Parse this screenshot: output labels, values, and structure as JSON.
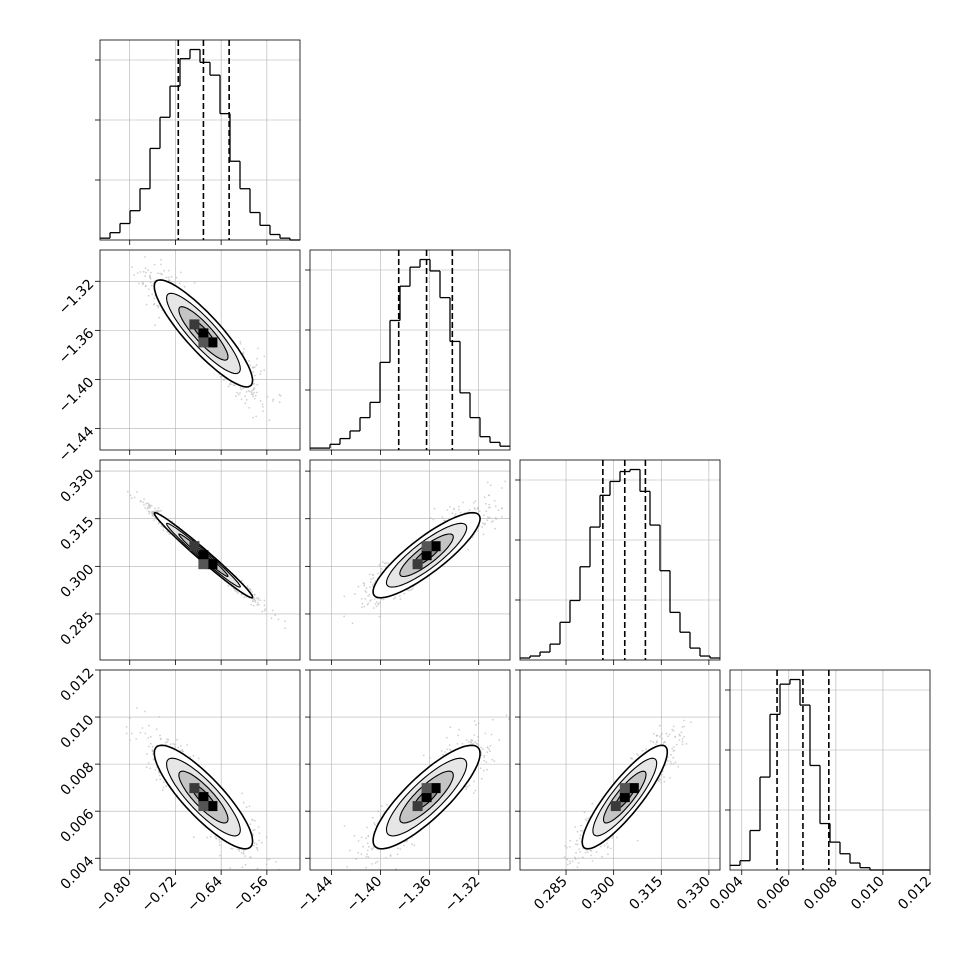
{
  "chart_data": {
    "type": "corner",
    "parameters": [
      {
        "id": "p0",
        "ticks": [
          -0.8,
          -0.72,
          -0.64,
          -0.56
        ],
        "tick_labels": [
          "−0.80",
          "−0.72",
          "−0.64",
          "−0.56"
        ],
        "range": [
          -0.852,
          -0.502
        ],
        "quantiles": [
          -0.715,
          -0.671,
          -0.626
        ],
        "median": -0.671,
        "sigma": 0.043,
        "histogram": [
          1,
          4,
          9,
          16,
          28,
          50,
          67,
          84,
          99,
          104,
          97,
          90,
          69,
          43,
          28,
          15,
          8,
          3,
          1,
          0
        ]
      },
      {
        "id": "p1",
        "ticks": [
          -1.44,
          -1.4,
          -1.36,
          -1.32
        ],
        "tick_labels": [
          "−1.44",
          "−1.40",
          "−1.36",
          "−1.32"
        ],
        "range": [
          -1.4575,
          -1.2945
        ],
        "quantiles": [
          -1.3852,
          -1.3625,
          -1.3415
        ],
        "median": -1.3625,
        "sigma": 0.0218,
        "histogram": [
          1,
          1,
          3,
          6,
          10,
          17,
          25,
          46,
          68,
          86,
          96,
          100,
          94,
          80,
          57,
          30,
          17,
          7,
          4,
          2
        ]
      },
      {
        "id": "p2",
        "ticks": [
          0.285,
          0.3,
          0.315,
          0.33
        ],
        "tick_labels": [
          "0.285",
          "0.300",
          "0.315",
          "0.330"
        ],
        "range": [
          0.2705,
          0.3335
        ],
        "quantiles": [
          0.2966,
          0.3035,
          0.31
        ],
        "median": 0.3035,
        "sigma": 0.0067,
        "histogram": [
          1,
          2,
          4,
          8,
          19,
          30,
          47,
          67,
          83,
          90,
          95,
          96,
          85,
          68,
          45,
          24,
          14,
          6,
          2,
          1
        ]
      },
      {
        "id": "p3",
        "ticks": [
          0.004,
          0.006,
          0.008,
          0.01,
          0.012
        ],
        "tick_labels": [
          "0.004",
          "0.006",
          "0.008",
          "0.010",
          "0.012"
        ],
        "range": [
          0.0035,
          0.012
        ],
        "quantiles": [
          0.0055,
          0.0066,
          0.0077
        ],
        "median": 0.0066,
        "sigma": 0.0011,
        "histogram": [
          2,
          4,
          17,
          40,
          67,
          80,
          82,
          71,
          45,
          20,
          12,
          7,
          3,
          1,
          0,
          0,
          0,
          0,
          0,
          0
        ]
      }
    ],
    "correlations": [
      {
        "x": 0,
        "y": 1,
        "r": -0.88
      },
      {
        "x": 0,
        "y": 2,
        "r": -0.985
      },
      {
        "x": 1,
        "y": 2,
        "r": 0.86
      },
      {
        "x": 0,
        "y": 3,
        "r": -0.85
      },
      {
        "x": 1,
        "y": 3,
        "r": 0.84
      },
      {
        "x": 2,
        "y": 3,
        "r": 0.87
      }
    ],
    "quantile_levels": [
      0.16,
      0.5,
      0.84
    ],
    "contour_levels_sigma": [
      0.5,
      1.0,
      1.5,
      2.0
    ],
    "grid": true,
    "colors": {
      "line": "#000000",
      "grid": "#b0b0b0",
      "points": "#bdbdbd",
      "fill_light": "#ffffff",
      "fill_dark": "#000000"
    }
  }
}
